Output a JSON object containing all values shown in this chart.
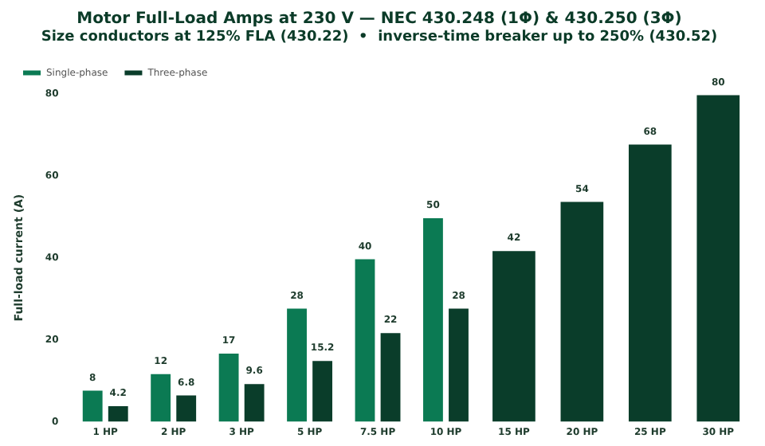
{
  "chart_data": {
    "type": "bar",
    "title": "Motor Full-Load Amps at 230 V — NEC 430.248 (1Φ) & 430.250 (3Φ)",
    "subtitle": "Size conductors at 125% FLA (430.22)  •  inverse-time breaker up to 250% (430.52)",
    "ylabel": "Full-load current (A)",
    "categories": [
      "1 HP",
      "2 HP",
      "3 HP",
      "5 HP",
      "7.5 HP",
      "10 HP",
      "15 HP",
      "20 HP",
      "25 HP",
      "30 HP"
    ],
    "series": [
      {
        "name": "Single-phase",
        "color": "#0b7a53",
        "values": [
          8,
          12,
          17,
          28,
          40,
          50,
          null,
          null,
          null,
          null
        ]
      },
      {
        "name": "Three-phase",
        "color": "#0a3d2a",
        "values": [
          4.2,
          6.8,
          9.6,
          15.2,
          22,
          28,
          42,
          54,
          68,
          80
        ]
      }
    ],
    "ylim": [
      0,
      80
    ],
    "yticks": [
      0,
      20,
      40,
      60,
      80
    ],
    "grid": false,
    "legend": "top left",
    "data_labels": true
  }
}
